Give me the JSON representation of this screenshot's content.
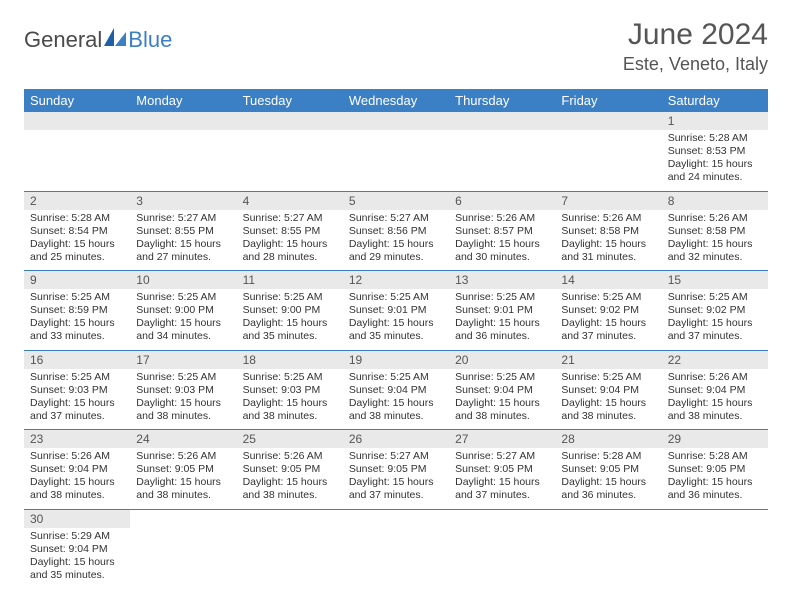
{
  "brand": {
    "part1": "General",
    "part2": "Blue"
  },
  "title": "June 2024",
  "location": "Este, Veneto, Italy",
  "colors": {
    "header_bg": "#3b7fc4",
    "header_fg": "#ffffff",
    "daynum_bg": "#e9e9e9",
    "row_divider": "#3b7fc4",
    "text": "#333333",
    "brand_gray": "#4a4a4a",
    "brand_blue": "#3b7fc4"
  },
  "daysOfWeek": [
    "Sunday",
    "Monday",
    "Tuesday",
    "Wednesday",
    "Thursday",
    "Friday",
    "Saturday"
  ],
  "grid": {
    "start_day_index": 6,
    "days": [
      {
        "n": 1,
        "sunrise": "5:28 AM",
        "sunset": "8:53 PM",
        "daylight": "15 hours and 24 minutes."
      },
      {
        "n": 2,
        "sunrise": "5:28 AM",
        "sunset": "8:54 PM",
        "daylight": "15 hours and 25 minutes."
      },
      {
        "n": 3,
        "sunrise": "5:27 AM",
        "sunset": "8:55 PM",
        "daylight": "15 hours and 27 minutes."
      },
      {
        "n": 4,
        "sunrise": "5:27 AM",
        "sunset": "8:55 PM",
        "daylight": "15 hours and 28 minutes."
      },
      {
        "n": 5,
        "sunrise": "5:27 AM",
        "sunset": "8:56 PM",
        "daylight": "15 hours and 29 minutes."
      },
      {
        "n": 6,
        "sunrise": "5:26 AM",
        "sunset": "8:57 PM",
        "daylight": "15 hours and 30 minutes."
      },
      {
        "n": 7,
        "sunrise": "5:26 AM",
        "sunset": "8:58 PM",
        "daylight": "15 hours and 31 minutes."
      },
      {
        "n": 8,
        "sunrise": "5:26 AM",
        "sunset": "8:58 PM",
        "daylight": "15 hours and 32 minutes."
      },
      {
        "n": 9,
        "sunrise": "5:25 AM",
        "sunset": "8:59 PM",
        "daylight": "15 hours and 33 minutes."
      },
      {
        "n": 10,
        "sunrise": "5:25 AM",
        "sunset": "9:00 PM",
        "daylight": "15 hours and 34 minutes."
      },
      {
        "n": 11,
        "sunrise": "5:25 AM",
        "sunset": "9:00 PM",
        "daylight": "15 hours and 35 minutes."
      },
      {
        "n": 12,
        "sunrise": "5:25 AM",
        "sunset": "9:01 PM",
        "daylight": "15 hours and 35 minutes."
      },
      {
        "n": 13,
        "sunrise": "5:25 AM",
        "sunset": "9:01 PM",
        "daylight": "15 hours and 36 minutes."
      },
      {
        "n": 14,
        "sunrise": "5:25 AM",
        "sunset": "9:02 PM",
        "daylight": "15 hours and 37 minutes."
      },
      {
        "n": 15,
        "sunrise": "5:25 AM",
        "sunset": "9:02 PM",
        "daylight": "15 hours and 37 minutes."
      },
      {
        "n": 16,
        "sunrise": "5:25 AM",
        "sunset": "9:03 PM",
        "daylight": "15 hours and 37 minutes."
      },
      {
        "n": 17,
        "sunrise": "5:25 AM",
        "sunset": "9:03 PM",
        "daylight": "15 hours and 38 minutes."
      },
      {
        "n": 18,
        "sunrise": "5:25 AM",
        "sunset": "9:03 PM",
        "daylight": "15 hours and 38 minutes."
      },
      {
        "n": 19,
        "sunrise": "5:25 AM",
        "sunset": "9:04 PM",
        "daylight": "15 hours and 38 minutes."
      },
      {
        "n": 20,
        "sunrise": "5:25 AM",
        "sunset": "9:04 PM",
        "daylight": "15 hours and 38 minutes."
      },
      {
        "n": 21,
        "sunrise": "5:25 AM",
        "sunset": "9:04 PM",
        "daylight": "15 hours and 38 minutes."
      },
      {
        "n": 22,
        "sunrise": "5:26 AM",
        "sunset": "9:04 PM",
        "daylight": "15 hours and 38 minutes."
      },
      {
        "n": 23,
        "sunrise": "5:26 AM",
        "sunset": "9:04 PM",
        "daylight": "15 hours and 38 minutes."
      },
      {
        "n": 24,
        "sunrise": "5:26 AM",
        "sunset": "9:05 PM",
        "daylight": "15 hours and 38 minutes."
      },
      {
        "n": 25,
        "sunrise": "5:26 AM",
        "sunset": "9:05 PM",
        "daylight": "15 hours and 38 minutes."
      },
      {
        "n": 26,
        "sunrise": "5:27 AM",
        "sunset": "9:05 PM",
        "daylight": "15 hours and 37 minutes."
      },
      {
        "n": 27,
        "sunrise": "5:27 AM",
        "sunset": "9:05 PM",
        "daylight": "15 hours and 37 minutes."
      },
      {
        "n": 28,
        "sunrise": "5:28 AM",
        "sunset": "9:05 PM",
        "daylight": "15 hours and 36 minutes."
      },
      {
        "n": 29,
        "sunrise": "5:28 AM",
        "sunset": "9:05 PM",
        "daylight": "15 hours and 36 minutes."
      },
      {
        "n": 30,
        "sunrise": "5:29 AM",
        "sunset": "9:04 PM",
        "daylight": "15 hours and 35 minutes."
      }
    ]
  },
  "labels": {
    "sunrise": "Sunrise:",
    "sunset": "Sunset:",
    "daylight": "Daylight:"
  }
}
